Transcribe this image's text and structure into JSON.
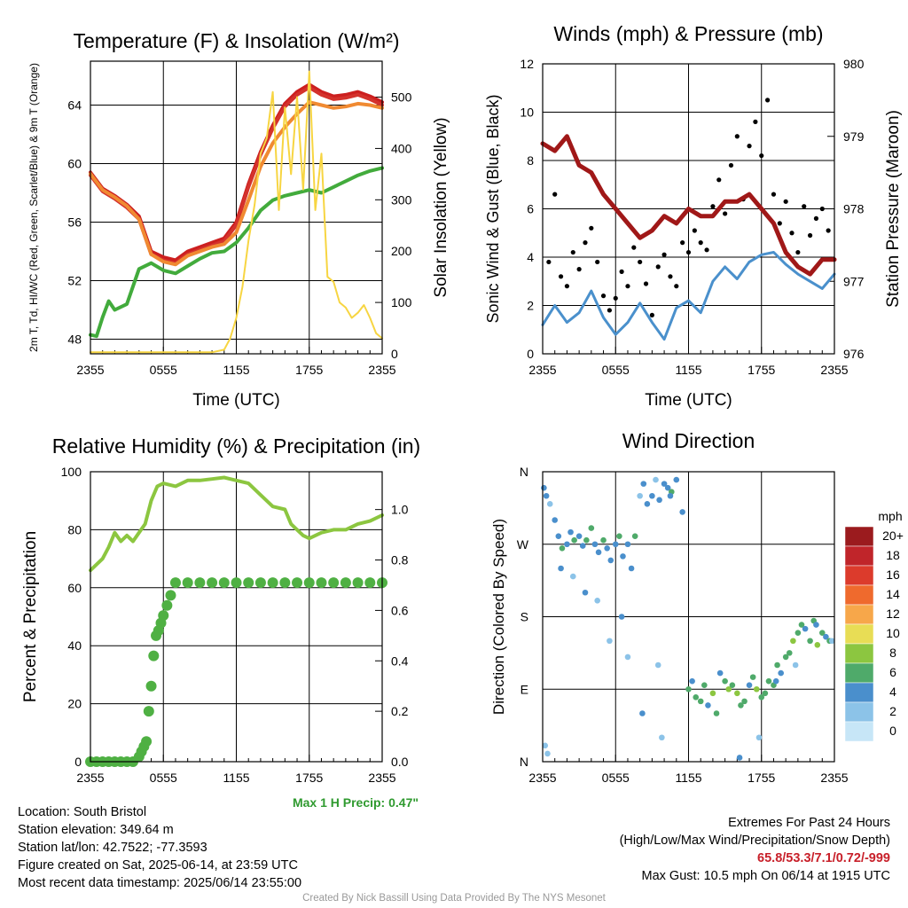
{
  "page": {
    "info_left": [
      "Location: South Bristol",
      "Station elevation: 349.64 m",
      "Station lat/lon: 42.7522; -77.3593",
      "Figure created on Sat, 2025-06-14, at 23:59 UTC",
      "Most recent data timestamp: 2025/06/14 23:55:00"
    ],
    "extremes_title": "Extremes For Past 24 Hours",
    "extremes_subtitle": "(High/Low/Max Wind/Precipitation/Snow Depth)",
    "extremes_values": "65.8/53.3/7.1/0.72/-999",
    "max_gust": "Max Gust: 10.5 mph On 06/14 at 1915 UTC",
    "max_precip": "Max 1 H Precip: 0.47\"",
    "credit": "Created By Nick Bassill Using Data Provided By The NYS Mesonet"
  },
  "chart_data": [
    {
      "id": "temperature",
      "type": "line",
      "title": "Temperature (F) & Insolation (W/m²)",
      "xlabel": "Time (UTC)",
      "ylabel": "2m T, Td, HI/WC (Red, Green, Scarlet/Blue) & 9m T (Orange)",
      "ylabel_right": "Solar Insolation (Yellow)",
      "xticks": [
        "2355",
        "0555",
        "1155",
        "1755",
        "2355"
      ],
      "xlim": [
        0,
        24
      ],
      "ylim": [
        47,
        67
      ],
      "yticks": [
        48,
        52,
        56,
        60,
        64
      ],
      "ylim_right": [
        0,
        570
      ],
      "yticks_right": [
        0,
        100,
        200,
        300,
        400,
        500
      ],
      "series": [
        {
          "name": "2m T",
          "color": "#cc1f1f",
          "axis": "left",
          "x": [
            0,
            1,
            2,
            3,
            4,
            5,
            6,
            7,
            8,
            9,
            10,
            11,
            12,
            13,
            14,
            15,
            16,
            17,
            18,
            19,
            20,
            21,
            22,
            23,
            24
          ],
          "y": [
            59.4,
            58.3,
            57.8,
            57.2,
            56.4,
            54.0,
            53.6,
            53.4,
            54.0,
            54.3,
            54.6,
            54.9,
            56.0,
            58.6,
            60.8,
            62.6,
            64.1,
            64.9,
            65.4,
            64.9,
            64.6,
            64.7,
            64.9,
            64.6,
            64.2
          ]
        },
        {
          "name": "Heat Index / Wind Chill",
          "color": "#d4322c",
          "axis": "left",
          "x": [
            0,
            1,
            2,
            3,
            4,
            5,
            6,
            7,
            8,
            9,
            10,
            11,
            12,
            13,
            14,
            15,
            16,
            17,
            18,
            19,
            20,
            21,
            22,
            23,
            24
          ],
          "y": [
            59.2,
            58.1,
            57.6,
            57.0,
            56.2,
            53.8,
            53.4,
            53.2,
            53.8,
            54.1,
            54.4,
            54.7,
            55.8,
            58.4,
            60.6,
            62.4,
            63.9,
            64.7,
            65.2,
            64.7,
            64.4,
            64.5,
            64.7,
            64.4,
            64.0
          ]
        },
        {
          "name": "9m T",
          "color": "#f08a32",
          "axis": "left",
          "x": [
            0,
            1,
            2,
            3,
            4,
            5,
            6,
            7,
            8,
            9,
            10,
            11,
            12,
            13,
            14,
            15,
            16,
            17,
            18,
            19,
            20,
            21,
            22,
            23,
            24
          ],
          "y": [
            59.3,
            58.2,
            57.7,
            57.1,
            56.2,
            53.8,
            53.3,
            53.1,
            53.7,
            54.0,
            54.3,
            54.5,
            55.3,
            57.5,
            59.8,
            61.4,
            62.5,
            63.4,
            64.2,
            64.0,
            63.8,
            63.9,
            64.1,
            64.0,
            63.8
          ]
        },
        {
          "name": "2m Td",
          "color": "#42ab3c",
          "axis": "left",
          "x": [
            0,
            0.5,
            1,
            1.5,
            2,
            3,
            4,
            5,
            6,
            7,
            8,
            9,
            10,
            11,
            12,
            13,
            14,
            15,
            16,
            17,
            18,
            19,
            20,
            21,
            22,
            23,
            24
          ],
          "y": [
            48.3,
            48.2,
            49.5,
            50.6,
            50.0,
            50.4,
            52.8,
            53.2,
            52.7,
            52.5,
            53.0,
            53.5,
            53.9,
            54.0,
            54.6,
            55.6,
            56.8,
            57.5,
            57.8,
            58.0,
            58.2,
            58.0,
            58.4,
            58.8,
            59.2,
            59.5,
            59.7
          ]
        },
        {
          "name": "Solar Insolation",
          "color": "#f7d542",
          "axis": "right",
          "x": [
            0,
            5,
            8,
            9,
            10,
            11,
            11.5,
            12,
            12.5,
            13,
            13.5,
            14,
            14.5,
            15,
            15.5,
            16,
            16.5,
            17,
            17.5,
            18,
            18.5,
            19,
            19.5,
            20,
            20.5,
            21,
            21.5,
            22,
            22.5,
            23,
            23.5,
            24
          ],
          "y": [
            3,
            3,
            3,
            3,
            3,
            8,
            30,
            70,
            130,
            220,
            290,
            390,
            420,
            510,
            280,
            480,
            350,
            500,
            320,
            550,
            280,
            390,
            150,
            140,
            100,
            90,
            70,
            80,
            95,
            70,
            40,
            30
          ]
        }
      ]
    },
    {
      "id": "winds",
      "type": "line",
      "title": "Winds (mph) & Pressure (mb)",
      "xlabel": "Time (UTC)",
      "ylabel": "Sonic Wind & Gust (Blue, Black)",
      "ylabel_right": "Station Pressure (Maroon)",
      "xticks": [
        "2355",
        "0555",
        "1155",
        "1755",
        "2355"
      ],
      "xlim": [
        0,
        24
      ],
      "ylim": [
        0,
        12
      ],
      "yticks": [
        0,
        2,
        4,
        6,
        8,
        10,
        12
      ],
      "ylim_right": [
        976,
        980
      ],
      "yticks_right": [
        976,
        977,
        978,
        979,
        980
      ],
      "series": [
        {
          "name": "Sonic Wind",
          "color": "#4a90cc",
          "axis": "left",
          "x": [
            0,
            1,
            2,
            3,
            4,
            5,
            6,
            7,
            8,
            9,
            10,
            11,
            12,
            13,
            14,
            15,
            16,
            17,
            18,
            19,
            20,
            21,
            22,
            23,
            24
          ],
          "y": [
            1.2,
            2.0,
            1.3,
            1.7,
            2.6,
            1.5,
            0.8,
            1.3,
            2.1,
            1.3,
            0.6,
            1.9,
            2.2,
            1.7,
            3.0,
            3.6,
            3.1,
            3.8,
            4.1,
            4.2,
            3.7,
            3.3,
            3.0,
            2.7,
            3.3
          ]
        },
        {
          "name": "Gust",
          "color": "#000000",
          "axis": "left",
          "style": "points",
          "x": [
            0.5,
            1,
            1.5,
            2,
            2.5,
            3,
            3.5,
            4,
            4.5,
            5,
            5.5,
            6,
            6.5,
            7,
            7.5,
            8,
            8.5,
            9,
            9.5,
            10,
            10.5,
            11,
            11.5,
            12,
            12.5,
            13,
            13.5,
            14,
            14.5,
            15,
            15.5,
            16,
            16.5,
            17,
            17.5,
            18,
            18.5,
            19,
            19.5,
            20,
            20.5,
            21,
            21.5,
            22,
            22.5,
            23,
            23.5
          ],
          "y": [
            3.8,
            6.6,
            3.2,
            2.8,
            4.2,
            3.5,
            4.6,
            5.2,
            3.8,
            2.4,
            1.8,
            2.3,
            3.4,
            2.8,
            4.4,
            3.8,
            2.9,
            1.6,
            3.6,
            4.1,
            3.2,
            2.8,
            4.6,
            4.2,
            5.1,
            4.6,
            4.3,
            6.1,
            7.2,
            5.8,
            7.8,
            9.0,
            6.4,
            8.6,
            9.6,
            8.2,
            10.5,
            6.6,
            5.4,
            6.3,
            5.0,
            4.2,
            6.1,
            4.9,
            5.6,
            6.0,
            5.1
          ]
        },
        {
          "name": "Station Pressure",
          "color": "#a01818",
          "axis": "right",
          "x": [
            0,
            1,
            2,
            3,
            4,
            5,
            6,
            7,
            8,
            9,
            10,
            11,
            12,
            13,
            14,
            15,
            16,
            17,
            18,
            19,
            20,
            21,
            22,
            23,
            24
          ],
          "y": [
            978.9,
            978.8,
            979.0,
            978.6,
            978.5,
            978.2,
            978.0,
            977.8,
            977.6,
            977.7,
            977.9,
            977.8,
            978.0,
            977.9,
            977.9,
            978.1,
            978.1,
            978.2,
            978.0,
            977.8,
            977.4,
            977.2,
            977.1,
            977.3,
            977.3
          ]
        }
      ]
    },
    {
      "id": "humidity",
      "type": "line",
      "title": "Relative Humidity (%) & Precipitation (in)",
      "xlabel": "",
      "ylabel": "Percent & Precipitation",
      "xticks": [
        "2355",
        "0555",
        "1155",
        "1755",
        "2355"
      ],
      "xlim": [
        0,
        24
      ],
      "ylim": [
        0,
        100
      ],
      "yticks": [
        0,
        20,
        40,
        60,
        80,
        100
      ],
      "ylim_right": [
        0,
        1.15
      ],
      "yticks_right": [
        "0.0",
        "0.2",
        "0.4",
        "0.6",
        "0.8",
        "1.0"
      ],
      "series": [
        {
          "name": "Relative Humidity",
          "color": "#8cc640",
          "axis": "left",
          "x": [
            0,
            0.5,
            1,
            1.5,
            2,
            2.5,
            3,
            3.5,
            4,
            4.5,
            5,
            5.5,
            6,
            7,
            8,
            9,
            10,
            11,
            12,
            13,
            14,
            15,
            16,
            16.5,
            17,
            17.5,
            18,
            19,
            20,
            21,
            22,
            23,
            24
          ],
          "y": [
            66,
            68,
            70,
            74,
            79,
            76,
            78,
            76,
            79,
            82,
            90,
            95,
            96,
            95,
            97,
            97,
            97.5,
            98,
            97,
            96,
            92,
            88,
            87,
            82,
            80,
            78,
            77,
            79,
            80,
            80,
            82,
            83,
            85
          ]
        },
        {
          "name": "Precipitation",
          "color": "#4fb043",
          "axis": "right",
          "style": "points",
          "x": [
            0,
            0.5,
            1,
            1.5,
            2,
            2.5,
            3,
            3.5,
            4,
            4.2,
            4.4,
            4.6,
            4.8,
            5,
            5.2,
            5.4,
            5.6,
            5.8,
            6,
            6.3,
            6.6,
            7,
            8,
            9,
            10,
            11,
            12,
            13,
            14,
            15,
            16,
            17,
            18,
            19,
            20,
            21,
            22,
            23,
            24
          ],
          "y": [
            0,
            0,
            0,
            0,
            0,
            0,
            0,
            0,
            0.02,
            0.04,
            0.06,
            0.08,
            0.2,
            0.3,
            0.42,
            0.5,
            0.52,
            0.55,
            0.58,
            0.62,
            0.66,
            0.71,
            0.71,
            0.71,
            0.71,
            0.71,
            0.71,
            0.71,
            0.71,
            0.71,
            0.71,
            0.71,
            0.71,
            0.71,
            0.71,
            0.71,
            0.71,
            0.71,
            0.71
          ]
        }
      ]
    },
    {
      "id": "direction",
      "type": "scatter",
      "title": "Wind Direction",
      "xlabel": "",
      "ylabel": "Direction (Colored By Speed)",
      "xticks": [
        "2355",
        "0555",
        "1155",
        "1755",
        "2355"
      ],
      "xlim": [
        0,
        24
      ],
      "ylim": [
        0,
        360
      ],
      "ytick_labels": [
        {
          "v": 0,
          "t": "N"
        },
        {
          "v": 90,
          "t": "E"
        },
        {
          "v": 180,
          "t": "S"
        },
        {
          "v": 270,
          "t": "W"
        },
        {
          "v": 360,
          "t": "N"
        }
      ],
      "colorbar": {
        "title": "mph",
        "labels": [
          "20+",
          "18",
          "16",
          "14",
          "12",
          "10",
          "8",
          "6",
          "4",
          "2",
          "0"
        ],
        "colors": [
          "#9b1b1e",
          "#c0252a",
          "#dc3b2c",
          "#ef6a2d",
          "#f7a74a",
          "#e8dd55",
          "#8cc640",
          "#4faa6a",
          "#4a8fcc",
          "#8cc3e8",
          "#c7e6f7"
        ]
      },
      "points": {
        "x": [
          0.1,
          0.3,
          0.6,
          1.0,
          1.3,
          1.6,
          2.0,
          2.3,
          2.6,
          3.0,
          3.3,
          3.6,
          4.0,
          4.3,
          4.6,
          5.0,
          5.3,
          5.6,
          6.0,
          6.3,
          6.6,
          7.0,
          7.3,
          7.6,
          8.0,
          8.3,
          8.6,
          9.0,
          9.3,
          9.6,
          10.0,
          10.3,
          10.6,
          11.0,
          12.0,
          12.3,
          12.6,
          13.0,
          13.3,
          13.6,
          14.0,
          14.3,
          14.6,
          15.0,
          15.3,
          15.6,
          16.0,
          16.3,
          16.6,
          17.0,
          17.3,
          17.6,
          18.0,
          18.3,
          18.6,
          19.0,
          19.3,
          19.6,
          20.0,
          20.3,
          20.6,
          21.0,
          21.3,
          21.6,
          22.0,
          22.3,
          22.6,
          23.0,
          23.3,
          23.6,
          1.5,
          2.5,
          3.5,
          4.5,
          5.5,
          6.5,
          7.0,
          9.5,
          10.5,
          11.5,
          0.2,
          0.4,
          8.2,
          9.8,
          16.2,
          17.8,
          19.2,
          20.8,
          22.5,
          23.8
        ],
        "y": [
          340,
          330,
          320,
          300,
          280,
          265,
          270,
          285,
          275,
          280,
          268,
          275,
          290,
          270,
          260,
          275,
          265,
          250,
          270,
          280,
          255,
          270,
          240,
          280,
          330,
          345,
          320,
          330,
          350,
          325,
          345,
          340,
          335,
          350,
          90,
          100,
          80,
          75,
          95,
          70,
          85,
          60,
          110,
          100,
          90,
          95,
          85,
          70,
          75,
          95,
          105,
          90,
          80,
          85,
          100,
          95,
          120,
          110,
          130,
          135,
          150,
          160,
          170,
          165,
          150,
          175,
          145,
          160,
          155,
          150,
          240,
          230,
          210,
          200,
          150,
          180,
          130,
          120,
          330,
          310,
          20,
          10,
          60,
          30,
          5,
          30,
          100,
          120,
          170,
          150
        ],
        "speed": [
          2,
          3,
          1,
          2,
          3,
          4,
          2,
          3,
          4,
          3,
          2,
          4,
          5,
          3,
          2,
          4,
          3,
          2,
          3,
          4,
          2,
          3,
          2,
          4,
          1,
          2,
          3,
          2,
          1,
          3,
          2,
          3,
          4,
          3,
          4,
          3,
          4,
          5,
          4,
          3,
          6,
          4,
          3,
          5,
          6,
          4,
          6,
          5,
          4,
          3,
          5,
          6,
          4,
          5,
          4,
          5,
          4,
          3,
          5,
          4,
          6,
          5,
          4,
          3,
          4,
          5,
          6,
          4,
          3,
          4,
          2,
          1,
          2,
          1,
          1,
          2,
          1,
          1,
          2,
          3,
          1,
          1,
          2,
          1,
          2,
          1,
          2,
          1,
          2,
          1
        ]
      }
    }
  ]
}
